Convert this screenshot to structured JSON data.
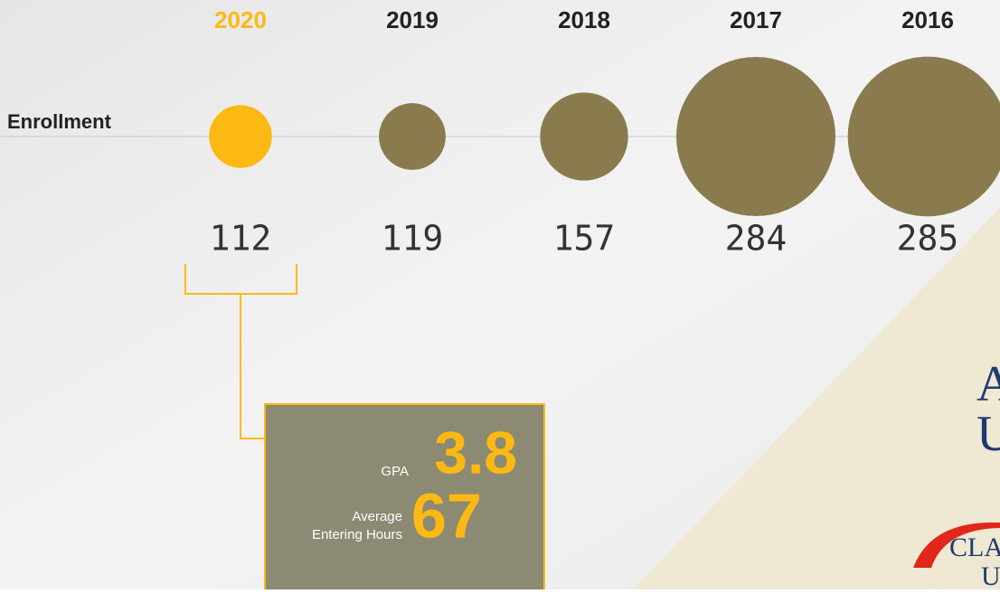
{
  "row_label": "Enrollment",
  "years": [
    {
      "year": "2020",
      "enrollment": 112,
      "highlight": true
    },
    {
      "year": "2019",
      "enrollment": 119,
      "highlight": false
    },
    {
      "year": "2018",
      "enrollment": 157,
      "highlight": false
    },
    {
      "year": "2017",
      "enrollment": 284,
      "highlight": false
    },
    {
      "year": "2016",
      "enrollment": 285,
      "highlight": false
    }
  ],
  "highlight_color": "#fdb913",
  "bubble_color": "#8a7b4e",
  "detail": {
    "gpa_label": "GPA",
    "gpa": 3.8,
    "hours_label_1": "Average",
    "hours_label_2": "Entering Hours",
    "hours": 67
  },
  "logos": [
    "A",
    "U",
    "CLAY",
    "U"
  ]
}
